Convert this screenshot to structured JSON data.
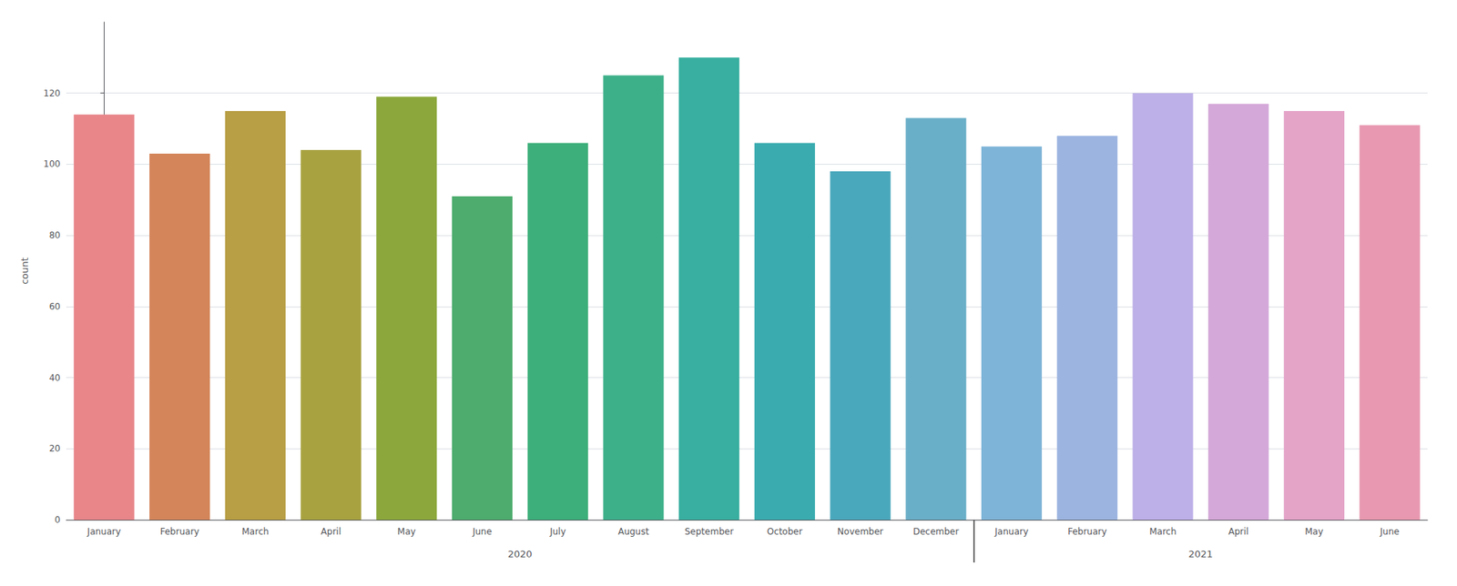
{
  "chart_data": {
    "type": "bar",
    "ylabel": "count",
    "categories": [
      "January",
      "February",
      "March",
      "April",
      "May",
      "June",
      "July",
      "August",
      "September",
      "October",
      "November",
      "December",
      "January",
      "February",
      "March",
      "April",
      "May",
      "June"
    ],
    "category_groups": [
      {
        "label": "2020",
        "size": 12
      },
      {
        "label": "2021",
        "size": 6
      }
    ],
    "values": [
      114,
      103,
      115,
      104,
      119,
      91,
      106,
      125,
      130,
      106,
      98,
      113,
      105,
      108,
      120,
      117,
      115,
      111
    ],
    "colors": [
      "#E8868A",
      "#D4855A",
      "#B89E44",
      "#A8A240",
      "#8CA83C",
      "#4DAC6E",
      "#3DAF7A",
      "#3DB08A",
      "#38AFA0",
      "#3AACB0",
      "#4AA8BC",
      "#6AAFC8",
      "#7EB4D8",
      "#9BB4E0",
      "#BDB0E8",
      "#D4A8D8",
      "#E4A4C8",
      "#E898B0"
    ],
    "ylim": [
      0,
      140
    ],
    "yticks": [
      0,
      20,
      40,
      60,
      80,
      100,
      120
    ],
    "grid": true
  }
}
